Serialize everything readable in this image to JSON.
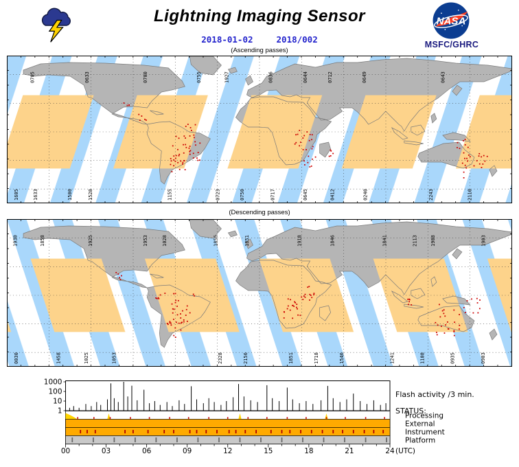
{
  "header": {
    "title": "Lightning Imaging Sensor",
    "date_iso": "2018-01-02",
    "date_doy": "2018/002",
    "org": "MSFC/GHRC",
    "nasa_text": "NASA"
  },
  "colors": {
    "swath_orange": "#fdd38b",
    "orbit_blue": "#a9d7fb",
    "land_gray": "#b5b5b5",
    "coast_gray": "#7a7a7a",
    "flash_red": "#cc0000",
    "status_orange": "#ffaa00",
    "status_gray": "#c9c9c9",
    "status_yellow": "#ffd400",
    "date_blue": "#2222cc",
    "nasa_blue": "#0b3d91",
    "nasa_red": "#fc3d21"
  },
  "ascending": {
    "label": "(Ascending passes)",
    "top_times": [
      [
        "0705",
        0.048
      ],
      [
        "0633",
        0.156
      ],
      [
        "0700",
        0.272
      ],
      [
        "0755",
        0.378
      ],
      [
        "1927",
        0.433
      ],
      [
        "0836",
        0.52
      ],
      [
        "0644",
        0.588
      ],
      [
        "0712",
        0.637
      ],
      [
        "0649",
        0.705
      ],
      [
        "0643",
        0.861
      ]
    ],
    "bottom_times": [
      [
        "1605",
        0.016
      ],
      [
        "1633",
        0.054
      ],
      [
        "1500",
        0.122
      ],
      [
        "1528",
        0.163
      ],
      [
        "1155",
        0.32
      ],
      [
        "0723",
        0.415
      ],
      [
        "0750",
        0.463
      ],
      [
        "0717",
        0.524
      ],
      [
        "0645",
        0.588
      ],
      [
        "0412",
        0.642
      ],
      [
        "0240",
        0.707
      ],
      [
        "2243",
        0.837
      ],
      [
        "2110",
        0.914
      ]
    ],
    "flash_clusters": [
      [
        0.36,
        0.5,
        8,
        0.012
      ],
      [
        0.355,
        0.64,
        30,
        0.03
      ],
      [
        0.335,
        0.74,
        14,
        0.022
      ],
      [
        0.27,
        0.4,
        5,
        0.01
      ],
      [
        0.585,
        0.57,
        18,
        0.022
      ],
      [
        0.6,
        0.7,
        8,
        0.015
      ],
      [
        0.638,
        0.66,
        5,
        0.008
      ],
      [
        0.925,
        0.74,
        22,
        0.025
      ],
      [
        0.9,
        0.6,
        7,
        0.012
      ],
      [
        0.235,
        0.33,
        4,
        0.008
      ]
    ]
  },
  "descending": {
    "label": "(Descending passes)",
    "top_times": [
      [
        "1930",
        0.014
      ],
      [
        "1858",
        0.068
      ],
      [
        "1925",
        0.163
      ],
      [
        "1953",
        0.272
      ],
      [
        "1028",
        0.31
      ],
      [
        "1856",
        0.411
      ],
      [
        "1851",
        0.473
      ],
      [
        "1918",
        0.577
      ],
      [
        "1846",
        0.642
      ],
      [
        "1841",
        0.745
      ],
      [
        "2113",
        0.805
      ],
      [
        "1908",
        0.841
      ],
      [
        "1903",
        0.941
      ]
    ],
    "bottom_times": [
      [
        "0030",
        0.016
      ],
      [
        "1458",
        0.1
      ],
      [
        "1025",
        0.155
      ],
      [
        "1053",
        0.21
      ],
      [
        "2328",
        0.42
      ],
      [
        "2156",
        0.47
      ],
      [
        "1851",
        0.56
      ],
      [
        "1718",
        0.61
      ],
      [
        "1546",
        0.66
      ],
      [
        "1241",
        0.76
      ],
      [
        "1108",
        0.82
      ],
      [
        "0935",
        0.88
      ],
      [
        "0903",
        0.94
      ]
    ],
    "flash_clusters": [
      [
        0.345,
        0.6,
        26,
        0.03
      ],
      [
        0.33,
        0.73,
        12,
        0.02
      ],
      [
        0.3,
        0.52,
        6,
        0.012
      ],
      [
        0.575,
        0.6,
        26,
        0.03
      ],
      [
        0.598,
        0.48,
        6,
        0.012
      ],
      [
        0.8,
        0.54,
        6,
        0.012
      ],
      [
        0.875,
        0.68,
        26,
        0.032
      ],
      [
        0.92,
        0.58,
        8,
        0.015
      ],
      [
        0.22,
        0.38,
        5,
        0.01
      ]
    ]
  },
  "chart_data": {
    "type": "bar",
    "title": "Flash activity /3 min.",
    "xlabel": "(UTC)",
    "x_ticks": [
      "00",
      "03",
      "06",
      "09",
      "12",
      "15",
      "18",
      "21",
      "24"
    ],
    "y_ticks": [
      "1000",
      "100",
      "10",
      "1"
    ],
    "y_scale": "log",
    "ylim": [
      1,
      1000
    ],
    "xlim_hours": [
      0,
      24
    ],
    "points": [
      [
        0.3,
        2
      ],
      [
        0.6,
        3
      ],
      [
        1.0,
        2
      ],
      [
        1.5,
        5
      ],
      [
        1.9,
        3
      ],
      [
        2.3,
        8
      ],
      [
        2.6,
        4
      ],
      [
        3.1,
        15
      ],
      [
        3.35,
        700
      ],
      [
        3.6,
        20
      ],
      [
        3.9,
        8
      ],
      [
        4.3,
        1000
      ],
      [
        4.6,
        30
      ],
      [
        4.9,
        400
      ],
      [
        5.3,
        12
      ],
      [
        5.8,
        150
      ],
      [
        6.2,
        6
      ],
      [
        6.6,
        10
      ],
      [
        7.0,
        4
      ],
      [
        7.5,
        8
      ],
      [
        7.9,
        3
      ],
      [
        8.4,
        12
      ],
      [
        8.8,
        5
      ],
      [
        9.3,
        350
      ],
      [
        9.7,
        15
      ],
      [
        10.2,
        6
      ],
      [
        10.6,
        20
      ],
      [
        11.0,
        8
      ],
      [
        11.5,
        4
      ],
      [
        11.9,
        10
      ],
      [
        12.4,
        25
      ],
      [
        12.8,
        600
      ],
      [
        13.2,
        30
      ],
      [
        13.7,
        12
      ],
      [
        14.2,
        8
      ],
      [
        14.9,
        450
      ],
      [
        15.3,
        20
      ],
      [
        15.8,
        10
      ],
      [
        16.4,
        250
      ],
      [
        16.8,
        15
      ],
      [
        17.3,
        6
      ],
      [
        17.8,
        10
      ],
      [
        18.3,
        5
      ],
      [
        18.9,
        12
      ],
      [
        19.4,
        380
      ],
      [
        19.8,
        20
      ],
      [
        20.3,
        8
      ],
      [
        20.8,
        15
      ],
      [
        21.3,
        60
      ],
      [
        21.8,
        10
      ],
      [
        22.3,
        5
      ],
      [
        22.8,
        12
      ],
      [
        23.3,
        4
      ],
      [
        23.7,
        6
      ]
    ],
    "status": {
      "label": "STATUS:",
      "rows": [
        {
          "name": "Processing",
          "style": "events",
          "yellow_events": [
            3.2,
            12.9,
            19.3
          ],
          "red_ticks": [
            0.9,
            2.1,
            3.3,
            4.8,
            6.2,
            7.7,
            9.1,
            10.6,
            12.0,
            13.5,
            14.9,
            16.4,
            17.8,
            19.3,
            20.7,
            22.2,
            23.6
          ]
        },
        {
          "name": "External",
          "style": "solid-orange"
        },
        {
          "name": "Instrument",
          "style": "solid-orange",
          "red_ticks": [
            1.1,
            1.6,
            2.2,
            4.4,
            5.0,
            6.1,
            7.3,
            8.0,
            9.2,
            9.7,
            10.4,
            11.2,
            12.1,
            12.6,
            13.3,
            14.1,
            15.2,
            16.0,
            16.6,
            17.4,
            18.2,
            19.0,
            19.8,
            20.5,
            21.3,
            22.1,
            22.8,
            23.5
          ]
        },
        {
          "name": "Platform",
          "style": "solid-gray",
          "ticks": [
            0.5,
            2.05,
            3.6,
            5.15,
            6.7,
            8.25,
            9.8,
            11.35,
            12.9,
            14.45,
            16.0,
            17.55,
            19.1,
            20.65,
            22.2,
            23.75
          ]
        }
      ]
    }
  }
}
